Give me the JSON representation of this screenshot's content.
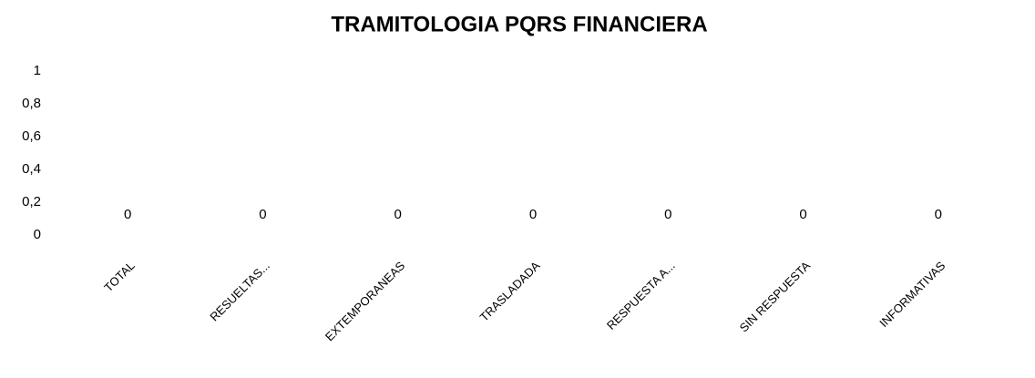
{
  "chart_data": {
    "type": "bar",
    "title": "TRAMITOLOGIA PQRS FINANCIERA",
    "categories": [
      "TOTAL",
      "RESUELTAS...",
      "EXTEMPORANEAS",
      "TRASLADADA",
      "RESPUESTA A...",
      "SIN RESPUESTA",
      "INFORMATIVAS"
    ],
    "values": [
      0,
      0,
      0,
      0,
      0,
      0,
      0
    ],
    "color": "#4472c4",
    "ylim": [
      0,
      1
    ],
    "yticks": [
      0,
      {
        "value": 0.2,
        "label": "0,2"
      },
      {
        "value": 0.4,
        "label": "0,4"
      },
      {
        "value": 0.6,
        "label": "0,6"
      },
      {
        "value": 0.8,
        "label": "0,8"
      },
      1
    ],
    "grid": false
  }
}
